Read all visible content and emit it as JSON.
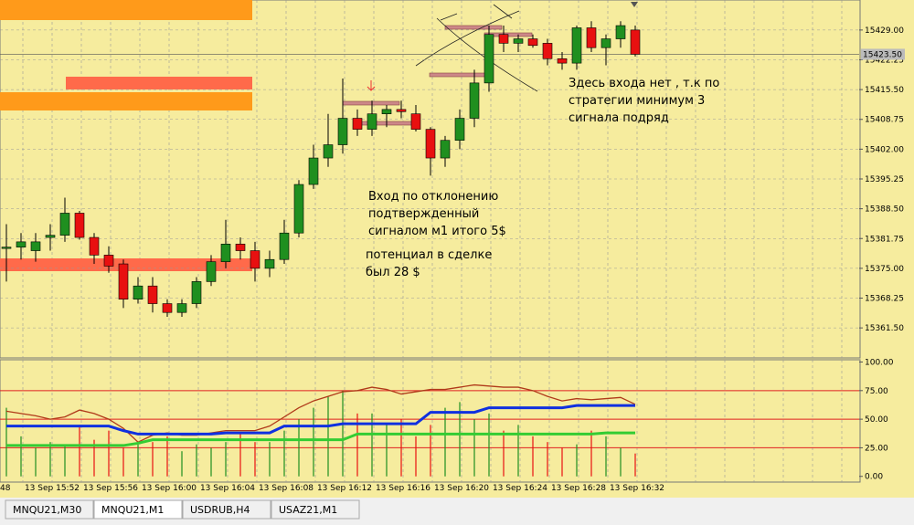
{
  "chart_data": [
    {
      "type": "candlestick",
      "symbol_tab_active": "MNQU21,M1",
      "open": [
        15379.5,
        15379.8,
        15379,
        15382,
        15382.5,
        15387.5,
        15382,
        15378,
        15376,
        15368,
        15371,
        15367,
        15365,
        15367,
        15372,
        15376.5,
        15380.5,
        15379,
        15375,
        15377,
        15383,
        15394,
        15400,
        15403,
        15409,
        15406.5,
        15410,
        15411,
        15410,
        15406.5,
        15400,
        15404,
        15409,
        15417,
        15428,
        15426,
        15427,
        15426,
        15422.5,
        15421.5,
        15429.5,
        15425,
        15427,
        15429
      ],
      "high": [
        15385,
        15383,
        15383,
        15385,
        15391,
        15388,
        15383,
        15380,
        15377,
        15373,
        15373,
        15368,
        15368,
        15373,
        15378,
        15386,
        15382,
        15381,
        15379,
        15386,
        15395,
        15403,
        15410,
        15418,
        15411,
        15413,
        15412,
        15413,
        15412,
        15407,
        15405,
        15411,
        15420,
        15430,
        15430,
        15428,
        15428,
        15427,
        15424,
        15430,
        15431,
        15428,
        15431,
        15430
      ],
      "low": [
        15372,
        15377,
        15376.5,
        15379,
        15381,
        15381.5,
        15376,
        15374,
        15366,
        15367,
        15365,
        15364,
        15364,
        15366,
        15371,
        15375,
        15377,
        15372,
        15373,
        15376,
        15382,
        15393,
        15398,
        15401,
        15405,
        15405,
        15407,
        15409,
        15406,
        15396,
        15398,
        15402,
        15407,
        15415,
        15424,
        15424,
        15425,
        15421,
        15420,
        15420,
        15424,
        15421,
        15425,
        15423
      ],
      "close": [
        15379.8,
        15381,
        15381,
        15382.5,
        15387.5,
        15382,
        15378,
        15375.5,
        15368,
        15371,
        15367,
        15365,
        15367,
        15372,
        15376.5,
        15380.5,
        15379,
        15375,
        15377,
        15383,
        15394,
        15400,
        15403,
        15409,
        15406.5,
        15410,
        15411,
        15410.5,
        15406.5,
        15400,
        15404,
        15409,
        15417,
        15428,
        15426,
        15427,
        15425.5,
        15422.5,
        15421.5,
        15429.5,
        15425,
        15427,
        15430,
        15423.5
      ],
      "ylim": [
        15354.7,
        15435.8
      ],
      "yticks": [
        {
          "value": 15429,
          "label": "15429.00"
        },
        {
          "value": 15422.25,
          "label": "15422.25"
        },
        {
          "value": 15415.5,
          "label": "15415.50"
        },
        {
          "value": 15408.75,
          "label": "15408.75"
        },
        {
          "value": 15402,
          "label": "15402.00"
        },
        {
          "value": 15395.25,
          "label": "15395.25"
        },
        {
          "value": 15388.5,
          "label": "15388.50"
        },
        {
          "value": 15381.75,
          "label": "15381.75"
        },
        {
          "value": 15375,
          "label": "15375.00"
        },
        {
          "value": 15368.25,
          "label": "15368.25"
        },
        {
          "value": 15361.5,
          "label": "15361.50"
        }
      ],
      "current_price": {
        "value": 15423.5,
        "label": "15423.50"
      },
      "up_color": "#1f8f1f",
      "down_color": "#e81010",
      "annotations": [
        "Здесь входа нет , т.к по",
        "стратегии минимум 3",
        "сигнала подряд",
        "Вход по отклонению",
        "подтвержденный",
        "сигналом м1 итого 5$",
        "потенциал в сделке",
        "был 28 $"
      ]
    },
    {
      "type": "line",
      "series": [
        {
          "name": "Brown",
          "color": "#b03a1a",
          "values": [
            57,
            55,
            53,
            50,
            52,
            58,
            55,
            50,
            42,
            30,
            36,
            38,
            36,
            36,
            38,
            40,
            40,
            40,
            44,
            52,
            60,
            66,
            70,
            74,
            75,
            78,
            76,
            72,
            74,
            76,
            76,
            78,
            80,
            79,
            78,
            78,
            75,
            70,
            66,
            68,
            67,
            68,
            69,
            63
          ]
        },
        {
          "name": "Blue",
          "color": "#1030e0",
          "values": [
            44,
            44,
            44,
            44,
            44,
            44,
            44,
            44,
            40,
            37,
            37,
            37,
            37,
            37,
            37,
            38,
            38,
            38,
            38,
            44,
            44,
            44,
            44,
            46,
            46,
            46,
            46,
            46,
            46,
            56,
            56,
            56,
            56,
            60,
            60,
            60,
            60,
            60,
            60,
            62,
            62,
            62,
            62,
            62
          ]
        },
        {
          "name": "Green",
          "color": "#33cc33",
          "values": [
            27,
            27,
            27,
            27,
            27,
            27,
            27,
            27,
            27,
            29,
            32,
            32,
            32,
            32,
            32,
            32,
            32,
            32,
            32,
            32,
            32,
            32,
            32,
            32,
            37,
            37,
            37,
            37,
            37,
            37,
            37,
            37,
            37,
            37,
            37,
            37,
            37,
            37,
            37,
            37,
            37,
            38,
            38,
            38
          ]
        }
      ],
      "hist": [
        60,
        35,
        25,
        30,
        28,
        45,
        32,
        40,
        25,
        28,
        30,
        35,
        22,
        28,
        25,
        30,
        38,
        30,
        30,
        40,
        50,
        60,
        70,
        75,
        55,
        55,
        45,
        50,
        35,
        45,
        60,
        65,
        50,
        55,
        40,
        45,
        35,
        30,
        25,
        28,
        40,
        35,
        25,
        20
      ],
      "levels": [
        25,
        50,
        75
      ],
      "ylim": [
        -5,
        102
      ],
      "yticks": [
        {
          "value": 100,
          "label": "100.00"
        },
        {
          "value": 75,
          "label": "75.00"
        },
        {
          "value": 50,
          "label": "50.00"
        },
        {
          "value": 25,
          "label": "25.00"
        },
        {
          "value": 0,
          "label": "0.00"
        }
      ],
      "x_labels": [
        "48",
        "13 Sep 15:52",
        "13 Sep 15:56",
        "13 Sep 16:00",
        "13 Sep 16:04",
        "13 Sep 16:08",
        "13 Sep 16:12",
        "13 Sep 16:16",
        "13 Sep 16:20",
        "13 Sep 16:24",
        "13 Sep 16:28",
        "13 Sep 16:32"
      ]
    }
  ],
  "tabs": [
    "MNQU21,M30",
    "MNQU21,M1",
    "USDRUB,H4",
    "USAZ21,M1"
  ]
}
